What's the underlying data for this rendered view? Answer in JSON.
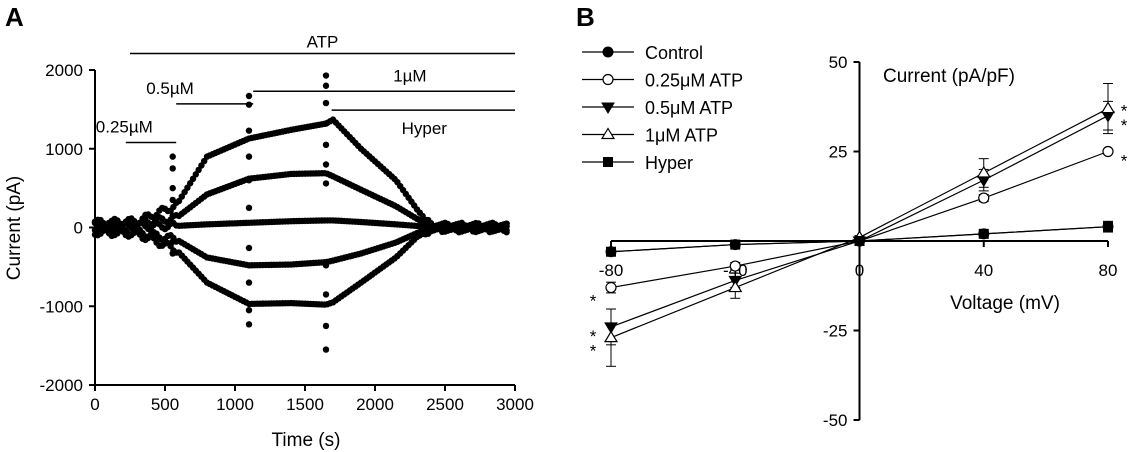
{
  "chart_data": [
    {
      "type": "scatter",
      "panel_label": "A",
      "xlabel": "Time (s)",
      "ylabel": "Current (pA)",
      "xlim": [
        0,
        3000
      ],
      "ylim": [
        -2000,
        2000
      ],
      "xticks": [
        0,
        500,
        1000,
        1500,
        2000,
        2500,
        3000
      ],
      "yticks": [
        -2000,
        -1000,
        0,
        1000,
        2000
      ],
      "grid": false,
      "annotations": [
        {
          "text": "ATP",
          "x_start": 250,
          "x_end": 3000,
          "y": 2210
        },
        {
          "text": "0.25µM",
          "x_start": 220,
          "x_end": 580,
          "y": 1080
        },
        {
          "text": "0.5µM",
          "x_start": 580,
          "x_end": 1130,
          "y": 1570
        },
        {
          "text": "1µM",
          "x_start": 1130,
          "x_end": 3000,
          "y": 1730
        },
        {
          "text": "Hyper",
          "x_start": 1690,
          "x_end": 3000,
          "y": 1490
        }
      ],
      "series": [
        {
          "x": [
            0,
            300,
            580,
            800,
            1100,
            1400,
            1650,
            1700,
            1900,
            2150,
            2300,
            2400,
            2600,
            2950
          ],
          "values": [
            60,
            80,
            280,
            900,
            1130,
            1240,
            1320,
            1370,
            1000,
            600,
            230,
            20,
            20,
            20
          ]
        },
        {
          "x": [
            0,
            300,
            580,
            800,
            1100,
            1400,
            1650,
            1700,
            1900,
            2150,
            2300,
            2400,
            2600,
            2950
          ],
          "values": [
            40,
            50,
            120,
            420,
            620,
            680,
            690,
            650,
            480,
            270,
            110,
            10,
            10,
            10
          ]
        },
        {
          "x": [
            0,
            300,
            580,
            800,
            1100,
            1400,
            1650,
            1700,
            1900,
            2150,
            2300,
            2400,
            2600,
            2950
          ],
          "values": [
            20,
            20,
            20,
            40,
            60,
            80,
            90,
            90,
            70,
            40,
            20,
            0,
            0,
            0
          ]
        },
        {
          "x": [
            0,
            300,
            580,
            800,
            1100,
            1400,
            1650,
            1700,
            1900,
            2150,
            2300,
            2400,
            2600,
            2950
          ],
          "values": [
            -40,
            -60,
            -150,
            -380,
            -480,
            -470,
            -440,
            -420,
            -330,
            -190,
            -70,
            -10,
            -10,
            -10
          ]
        },
        {
          "x": [
            0,
            300,
            580,
            800,
            1100,
            1400,
            1650,
            1700,
            1900,
            2150,
            2300,
            2400,
            2600,
            2950
          ],
          "values": [
            -60,
            -80,
            -280,
            -700,
            -970,
            -960,
            -980,
            -950,
            -700,
            -380,
            -120,
            -20,
            -20,
            -20
          ]
        }
      ],
      "spike_points": [
        {
          "x": 555,
          "values": [
            900,
            750,
            500,
            350,
            150,
            -180,
            -330
          ]
        },
        {
          "x": 1100,
          "values": [
            1670,
            1560,
            1230,
            900,
            600,
            250,
            -260,
            -700,
            -1050,
            -1230
          ]
        },
        {
          "x": 1650,
          "values": [
            1930,
            1800,
            1580,
            1320,
            1050,
            800,
            560,
            -480,
            -850,
            -1250,
            -1550
          ]
        }
      ]
    },
    {
      "type": "line",
      "panel_label": "B",
      "xlabel": "Voltage (mV)",
      "ylabel": "Current (pA/pF)",
      "x": [
        -80,
        -40,
        0,
        40,
        80
      ],
      "xlim": [
        -80,
        80
      ],
      "ylim": [
        -50,
        50
      ],
      "xticks": [
        -80,
        -40,
        0,
        40,
        80
      ],
      "yticks": [
        -50,
        -25,
        25,
        50
      ],
      "grid": false,
      "legend": "top-left",
      "series": [
        {
          "name": "Control",
          "marker": "circle-filled",
          "values": [
            -3,
            -1,
            0,
            2,
            4
          ],
          "err": [
            1,
            0.5,
            0.2,
            0.5,
            1.5
          ]
        },
        {
          "name": "0.25μM ATP",
          "marker": "circle-open",
          "values": [
            -13,
            -7,
            0,
            12,
            25
          ],
          "err": [
            1.5,
            1,
            0.3,
            1,
            0.5
          ]
        },
        {
          "name": "0.5μM ATP",
          "marker": "triangle-down-filled",
          "values": [
            -24,
            -11,
            0,
            17,
            35
          ],
          "err": [
            5,
            2,
            0.3,
            3,
            4
          ]
        },
        {
          "name": "1μM ATP",
          "marker": "triangle-up-open",
          "values": [
            -27,
            -13,
            1,
            19,
            37
          ],
          "err": [
            8,
            3,
            0.5,
            4,
            7
          ]
        },
        {
          "name": "Hyper",
          "marker": "square-filled",
          "values": [
            -3,
            -1,
            0,
            2,
            4
          ],
          "err": [
            1,
            0.5,
            0.2,
            0.5,
            1
          ]
        }
      ],
      "significance": [
        {
          "label": "*",
          "x": 80,
          "y": 37
        },
        {
          "label": "*",
          "x": 80,
          "y": 33
        },
        {
          "label": "*",
          "x": 80,
          "y": 23
        },
        {
          "label": "*",
          "x": -80,
          "y": -16
        },
        {
          "label": "*",
          "x": -80,
          "y": -26
        },
        {
          "label": "*",
          "x": -80,
          "y": -30
        }
      ]
    }
  ]
}
